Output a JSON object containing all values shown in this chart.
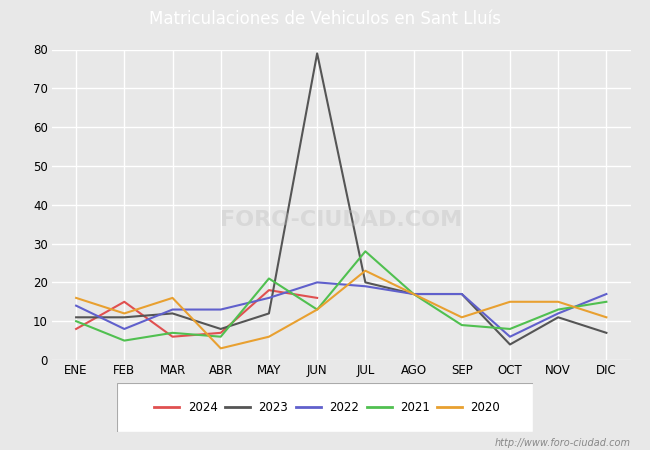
{
  "title": "Matriculaciones de Vehiculos en Sant Lluís",
  "months": [
    "ENE",
    "FEB",
    "MAR",
    "ABR",
    "MAY",
    "JUN",
    "JUL",
    "AGO",
    "SEP",
    "OCT",
    "NOV",
    "DIC"
  ],
  "series": {
    "2024": {
      "values": [
        8,
        15,
        6,
        7,
        18,
        16,
        null,
        null,
        null,
        null,
        null,
        null
      ],
      "color": "#e05050",
      "label": "2024"
    },
    "2023": {
      "values": [
        11,
        11,
        12,
        8,
        12,
        79,
        20,
        17,
        17,
        4,
        11,
        7
      ],
      "color": "#555555",
      "label": "2023"
    },
    "2022": {
      "values": [
        14,
        8,
        13,
        13,
        16,
        20,
        19,
        17,
        17,
        6,
        12,
        17
      ],
      "color": "#6060cc",
      "label": "2022"
    },
    "2021": {
      "values": [
        10,
        5,
        7,
        6,
        21,
        13,
        28,
        17,
        9,
        8,
        13,
        15
      ],
      "color": "#50c050",
      "label": "2021"
    },
    "2020": {
      "values": [
        16,
        12,
        16,
        3,
        6,
        13,
        23,
        17,
        11,
        15,
        15,
        11
      ],
      "color": "#e8a030",
      "label": "2020"
    }
  },
  "ylim": [
    0,
    80
  ],
  "yticks": [
    0,
    10,
    20,
    30,
    40,
    50,
    60,
    70,
    80
  ],
  "bg_color": "#e8e8e8",
  "plot_bg_color": "#e8e8e8",
  "title_bg_color": "#4472c4",
  "title_color": "#ffffff",
  "grid_color": "#ffffff",
  "watermark": "http://www.foro-ciudad.com",
  "watermark_text": "FORO-CIUDAD.COM"
}
